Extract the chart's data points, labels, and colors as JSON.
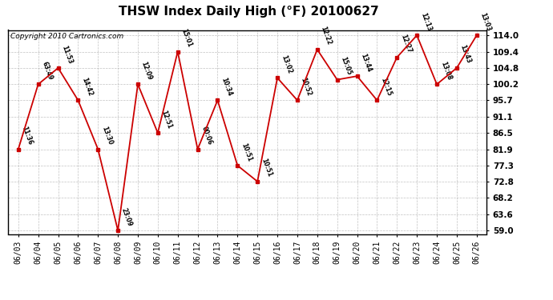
{
  "title": "THSW Index Daily High (°F) 20100627",
  "copyright": "Copyright 2010 Cartronics.com",
  "x_labels": [
    "06/03",
    "06/04",
    "06/05",
    "06/06",
    "06/07",
    "06/08",
    "06/09",
    "06/10",
    "06/11",
    "06/12",
    "06/13",
    "06/14",
    "06/15",
    "06/16",
    "06/17",
    "06/18",
    "06/19",
    "06/20",
    "06/21",
    "06/22",
    "06/23",
    "06/24",
    "06/25",
    "06/26"
  ],
  "y_values": [
    81.9,
    100.2,
    104.8,
    95.7,
    81.9,
    59.0,
    100.2,
    86.5,
    109.4,
    81.9,
    95.7,
    77.3,
    72.8,
    102.0,
    95.7,
    110.0,
    101.5,
    102.5,
    95.7,
    107.8,
    114.0,
    100.2,
    104.8,
    114.0
  ],
  "time_labels": [
    "11:36",
    "63:49",
    "11:53",
    "14:42",
    "13:30",
    "23:09",
    "12:09",
    "12:51",
    "15:01",
    "00:06",
    "10:34",
    "10:51",
    "10:51",
    "13:02",
    "10:52",
    "12:22",
    "15:05",
    "13:44",
    "12:15",
    "12:27",
    "12:13",
    "13:08",
    "13:43",
    "13:03"
  ],
  "y_ticks": [
    59.0,
    63.6,
    68.2,
    72.8,
    77.3,
    81.9,
    86.5,
    91.1,
    95.7,
    100.2,
    104.8,
    109.4,
    114.0
  ],
  "y_min": 59.0,
  "y_max": 114.0,
  "line_color": "#cc0000",
  "marker_color": "#cc0000",
  "bg_color": "#ffffff",
  "grid_color": "#999999",
  "title_fontsize": 11,
  "copyright_fontsize": 6.5,
  "label_fontsize": 5.5,
  "tick_fontsize": 7,
  "ytick_fontsize": 7.5
}
